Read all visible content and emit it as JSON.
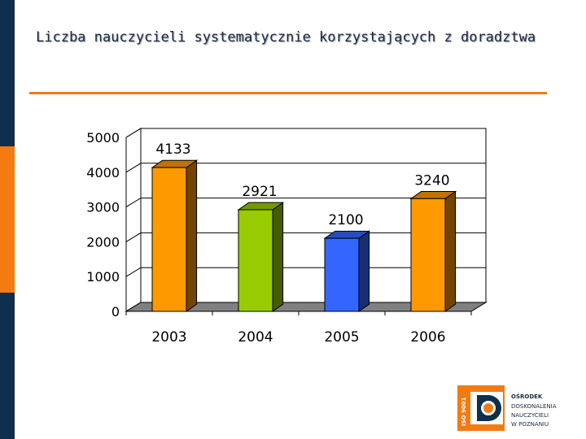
{
  "slide": {
    "title": "Liczba nauczycieli systematycznie korzystających z doradztwa"
  },
  "colors": {
    "accent": "#f47a12",
    "sidebar_dark": "#0f2f4d",
    "title": "#1a2a40"
  },
  "logo": {
    "badge": "ISO 9001",
    "lines": [
      "OŚRODEK",
      "DOSKONALENIA",
      "NAUCZYCIELI",
      "W POZNANIU"
    ],
    "icon": "odn-logo-icon"
  },
  "chart_data": {
    "type": "bar",
    "style": "3d",
    "categories": [
      "2003",
      "2004",
      "2005",
      "2006"
    ],
    "values": [
      4133,
      2921,
      2100,
      3240
    ],
    "data_labels": [
      "4133",
      "2921",
      "2100",
      "3240"
    ],
    "bar_colors": [
      "#ff9900",
      "#99cc00",
      "#3366ff",
      "#ff9900"
    ],
    "title": "",
    "xlabel": "",
    "ylabel": "",
    "ylim": [
      0,
      5000
    ],
    "yticks": [
      0,
      1000,
      2000,
      3000,
      4000,
      5000
    ],
    "ytick_labels": [
      "0",
      "1000",
      "2000",
      "3000",
      "4000",
      "5000"
    ],
    "grid": true,
    "legend": "none"
  }
}
